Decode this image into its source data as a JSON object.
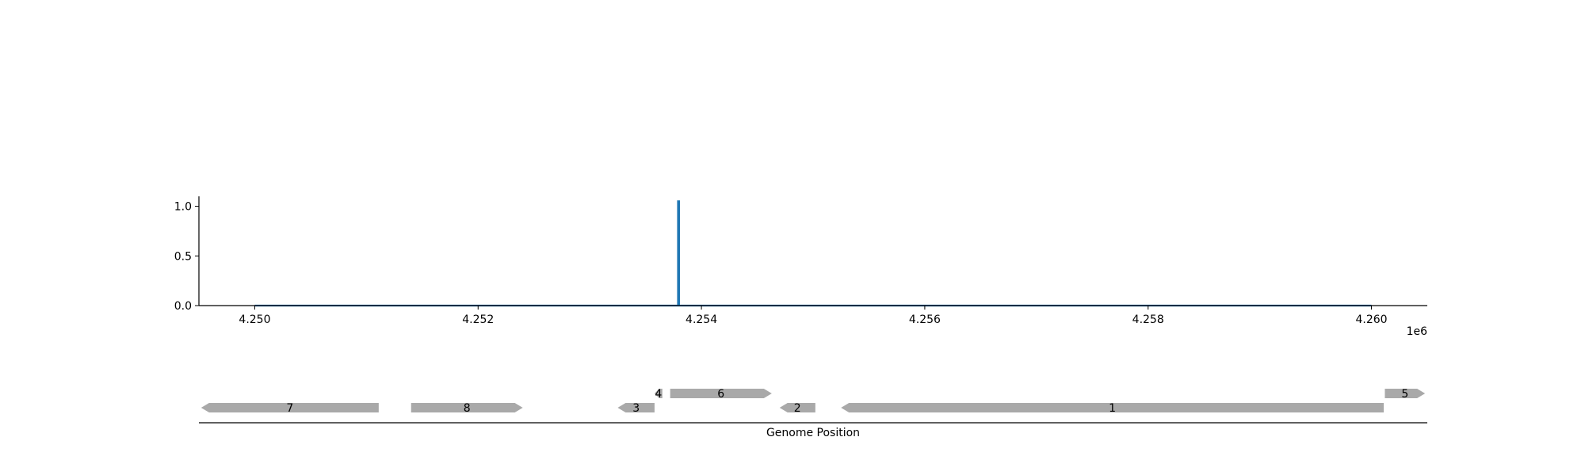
{
  "chart_data": [
    {
      "type": "line",
      "title": "",
      "xlabel": "",
      "ylabel": "",
      "x_offset_label": "1e6",
      "xlim": [
        4249500,
        4260500
      ],
      "ylim": [
        0,
        1.1
      ],
      "xticks": [
        4250000,
        4252000,
        4254000,
        4256000,
        4258000,
        4260000
      ],
      "xtick_labels": [
        "4.250",
        "4.252",
        "4.254",
        "4.256",
        "4.258",
        "4.260"
      ],
      "yticks": [
        0.0,
        0.5,
        1.0
      ],
      "ytick_labels": [
        "0.0",
        "0.5",
        "1.0"
      ],
      "grid": false,
      "series": [
        {
          "color": "#1f77b4",
          "x": [
            4250000,
            4253790,
            4253790,
            4253800,
            4253800,
            4260000
          ],
          "y": [
            0,
            0,
            1.05,
            1.05,
            0,
            0
          ]
        }
      ]
    },
    {
      "type": "gene_track",
      "xlabel": "Genome Position",
      "xlim": [
        4249500,
        4260500
      ],
      "feature_color": "#a9a9a9",
      "features": [
        {
          "label": "7",
          "start": 4249520,
          "end": 4251110,
          "strand": -1,
          "row": 0
        },
        {
          "label": "8",
          "start": 4251400,
          "end": 4252400,
          "strand": 1,
          "row": 0
        },
        {
          "label": "3",
          "start": 4253250,
          "end": 4253580,
          "strand": -1,
          "row": 0
        },
        {
          "label": "4",
          "start": 4253580,
          "end": 4253650,
          "strand": -1,
          "row": 1
        },
        {
          "label": "6",
          "start": 4253720,
          "end": 4254630,
          "strand": 1,
          "row": 1
        },
        {
          "label": "2",
          "start": 4254700,
          "end": 4255020,
          "strand": -1,
          "row": 0
        },
        {
          "label": "1",
          "start": 4255250,
          "end": 4260110,
          "strand": -1,
          "row": 0
        },
        {
          "label": "5",
          "start": 4260120,
          "end": 4260480,
          "strand": 1,
          "row": 1
        }
      ]
    }
  ]
}
